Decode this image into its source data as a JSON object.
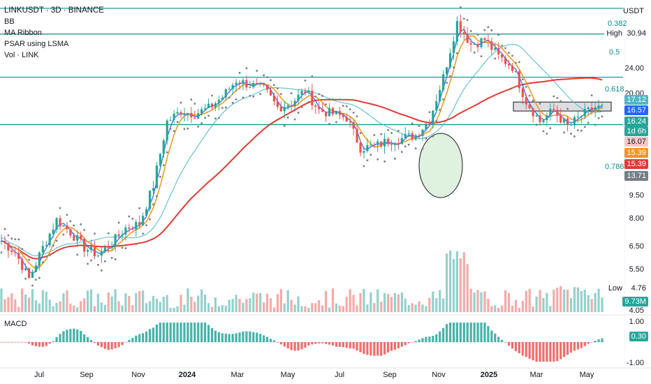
{
  "header": {
    "symbol_line": "LINKUSDT · 3D · BINANCE",
    "indicators": [
      "BB",
      "MA Ribbon",
      "PSAR using LSMA",
      "Vol · LINK"
    ],
    "currency": "USDT",
    "macd_label": "MACD"
  },
  "colors": {
    "up": "#26a69a",
    "down": "#ef5350",
    "ma_red": "#e53935",
    "ma_orange": "#f7931a",
    "ma_blue": "#2962ff",
    "bb_teal": "#4fb7c9",
    "fib": "#0b8f8f",
    "psar": "#787b86"
  },
  "chart_data": {
    "type": "candlestick",
    "symbol": "LINKUSDT",
    "interval": "3D",
    "exchange": "BINANCE",
    "y_scale": "log",
    "ylim": [
      4.05,
      32.5
    ],
    "y_ticks": [
      "24.00",
      "20.00",
      "9.50",
      "8.00",
      "6.50",
      "5.50",
      "4.05"
    ],
    "x_ticks": [
      "Jul",
      "Sep",
      "Nov",
      "2024",
      "Mar",
      "May",
      "Jul",
      "Sep",
      "Nov",
      "2025",
      "Mar",
      "May"
    ],
    "fib_levels": [
      {
        "label": "0.382",
        "value": 31.9
      },
      {
        "label": "0.5",
        "value": 26.8
      },
      {
        "label": "0.618",
        "value": 20.0
      },
      {
        "label": "0.786",
        "value": 14.5
      }
    ],
    "price_path": [
      [
        0,
        6.6
      ],
      [
        4,
        6.1
      ],
      [
        8,
        5.1
      ],
      [
        12,
        6.3
      ],
      [
        16,
        7.6
      ],
      [
        20,
        7.0
      ],
      [
        24,
        6.3
      ],
      [
        28,
        6.0
      ],
      [
        32,
        6.5
      ],
      [
        36,
        7.2
      ],
      [
        40,
        7.4
      ],
      [
        44,
        9.6
      ],
      [
        48,
        14.8
      ],
      [
        52,
        15.9
      ],
      [
        56,
        15.6
      ],
      [
        60,
        16.2
      ],
      [
        64,
        17.5
      ],
      [
        68,
        19.6
      ],
      [
        72,
        19.0
      ],
      [
        76,
        18.5
      ],
      [
        80,
        16.3
      ],
      [
        84,
        16.8
      ],
      [
        88,
        18.3
      ],
      [
        92,
        16.0
      ],
      [
        96,
        15.6
      ],
      [
        100,
        15.2
      ],
      [
        104,
        12.4
      ],
      [
        108,
        12.5
      ],
      [
        112,
        13.0
      ],
      [
        116,
        13.2
      ],
      [
        120,
        13.5
      ],
      [
        124,
        15.0
      ],
      [
        128,
        20.0
      ],
      [
        132,
        29.0
      ],
      [
        136,
        25.0
      ],
      [
        140,
        25.8
      ],
      [
        144,
        23.0
      ],
      [
        148,
        21.5
      ],
      [
        152,
        17.0
      ],
      [
        156,
        14.8
      ],
      [
        160,
        16.0
      ],
      [
        164,
        14.3
      ],
      [
        168,
        15.4
      ],
      [
        172,
        16.3
      ],
      [
        174,
        16.24
      ]
    ],
    "current_price": "16.24",
    "countdown": "1d 6h",
    "price_labels": [
      {
        "label": "High",
        "value": "30.94"
      },
      {
        "value": "17.12"
      },
      {
        "value": "16.57"
      },
      {
        "value": "16.24"
      },
      {
        "value": "16.07"
      },
      {
        "value": "15.39"
      },
      {
        "value": "15.39"
      },
      {
        "value": "13.71"
      },
      {
        "label": "Low",
        "value": "4.76"
      }
    ],
    "volume_label": "9.73M",
    "macd": {
      "ylim": [
        -1.0,
        1.0
      ],
      "y_ticks": [
        "1.00",
        "-1.00"
      ],
      "current": "0.30"
    },
    "annotations": [
      "ellipse around breakout Oct–Nov 2024",
      "resistance zone box near 16.3"
    ]
  }
}
